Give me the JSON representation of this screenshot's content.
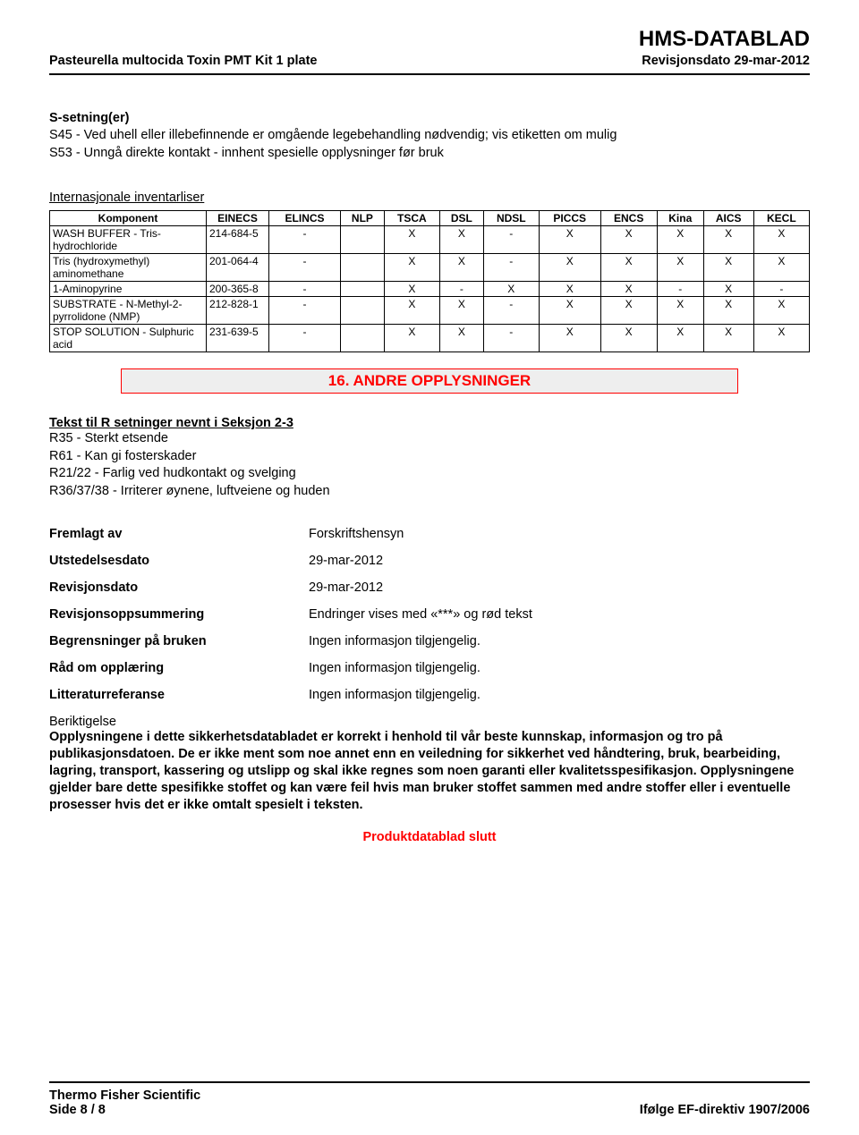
{
  "header": {
    "brand": "HMS-DATABLAD",
    "product": "Pasteurella multocida Toxin PMT Kit 1 plate",
    "revdate": "Revisjonsdato 29-mar-2012"
  },
  "s_section": {
    "title": "S-setning(er)",
    "lines": [
      "S45 - Ved uhell eller illebefinnende er omgående legebehandling nødvendig; vis etiketten om mulig",
      "S53 - Unngå direkte kontakt - innhent spesielle opplysninger før bruk"
    ]
  },
  "inv_title": "Internasjonale inventarliser",
  "inv_table": {
    "columns": [
      "Komponent",
      "EINECS",
      "ELINCS",
      "NLP",
      "TSCA",
      "DSL",
      "NDSL",
      "PICCS",
      "ENCS",
      "Kina",
      "AICS",
      "KECL"
    ],
    "rows": [
      [
        "WASH BUFFER - Tris-hydrochloride",
        "214-684-5",
        "-",
        "",
        "X",
        "X",
        "-",
        "X",
        "X",
        "X",
        "X",
        "X"
      ],
      [
        "Tris (hydroxymethyl) aminomethane",
        "201-064-4",
        "-",
        "",
        "X",
        "X",
        "-",
        "X",
        "X",
        "X",
        "X",
        "X"
      ],
      [
        "1-Aminopyrine",
        "200-365-8",
        "-",
        "",
        "X",
        "-",
        "X",
        "X",
        "X",
        "-",
        "X",
        "-"
      ],
      [
        "SUBSTRATE - N-Methyl-2-pyrrolidone (NMP)",
        "212-828-1",
        "-",
        "",
        "X",
        "X",
        "-",
        "X",
        "X",
        "X",
        "X",
        "X"
      ],
      [
        "STOP SOLUTION - Sulphuric acid",
        "231-639-5",
        "-",
        "",
        "X",
        "X",
        "-",
        "X",
        "X",
        "X",
        "X",
        "X"
      ]
    ]
  },
  "section16_title": "16. ANDRE OPPLYSNINGER",
  "r_section": {
    "title": "Tekst til R setninger nevnt i Seksjon 2-3",
    "lines": [
      "R35 - Sterkt etsende",
      "R61 - Kan gi fosterskader",
      "R21/22 - Farlig ved hudkontakt og svelging",
      "R36/37/38 - Irriterer øynene, luftveiene og huden"
    ]
  },
  "info": [
    {
      "label": "Fremlagt av",
      "value": "Forskriftshensyn"
    },
    {
      "label": "Utstedelsesdato",
      "value": "29-mar-2012"
    },
    {
      "label": "Revisjonsdato",
      "value": "29-mar-2012"
    },
    {
      "label": "Revisjonsoppsummering",
      "value": "Endringer vises med «***» og rød tekst"
    },
    {
      "label": "Begrensninger på bruken",
      "value": "Ingen informasjon tilgjengelig."
    },
    {
      "label": "Råd om opplæring",
      "value": "Ingen informasjon tilgjengelig."
    },
    {
      "label": "Litteraturreferanse",
      "value": "Ingen informasjon tilgjengelig."
    }
  ],
  "disclaimer": {
    "heading": "Beriktigelse",
    "text": "Opplysningene i dette sikkerhetsdatabladet er korrekt i henhold til vår beste kunnskap, informasjon og tro på publikasjonsdatoen. De er ikke ment som noe annet enn en veiledning for sikkerhet ved håndtering, bruk, bearbeiding, lagring, transport, kassering og utslipp og skal ikke regnes som noen garanti eller kvalitetsspesifikasjon. Opplysningene gjelder bare dette spesifikke stoffet og kan være feil hvis man bruker stoffet sammen med andre stoffer eller i eventuelle prosesser hvis det er ikke omtalt spesielt i teksten."
  },
  "product_end": "Produktdatablad slutt",
  "footer": {
    "company": "Thermo Fisher Scientific",
    "page": "Side  8 / 8",
    "directive": "Ifølge EF-direktiv 1907/2006"
  },
  "colors": {
    "red": "#ff0000",
    "band_bg": "#eeeeee",
    "text": "#000000",
    "bg": "#ffffff"
  }
}
